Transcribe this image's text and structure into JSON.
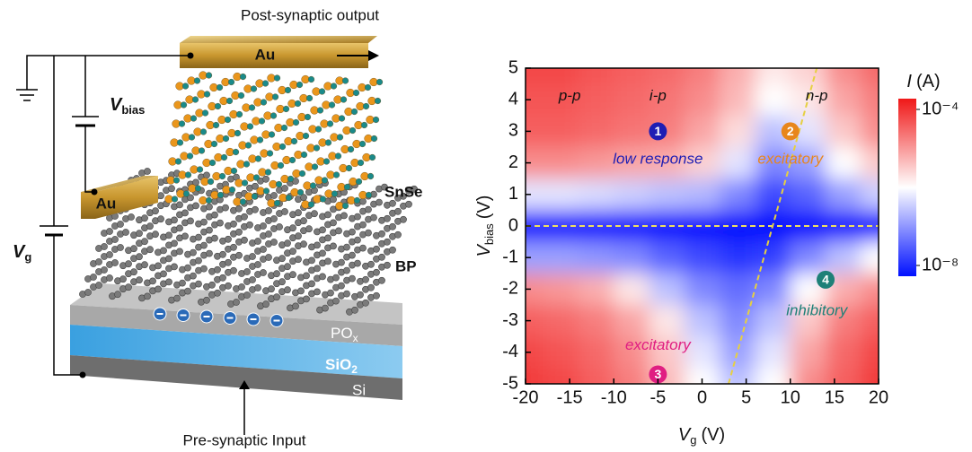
{
  "schematic": {
    "top_label": "Post-synaptic output",
    "top_electrode": "Au",
    "side_electrode": "Au",
    "vbias": {
      "symbol": "V",
      "subscript": "bias"
    },
    "vg": {
      "symbol": "V",
      "subscript": "g"
    },
    "snse": "SnSe",
    "bp": "BP",
    "pox": {
      "base": "PO",
      "subscript": "x"
    },
    "sio2": {
      "base": "SiO",
      "subscript": "2"
    },
    "si": "Si",
    "bottom_label": "Pre-synaptic Input"
  },
  "chart_data": {
    "type": "heatmap",
    "x_label": {
      "symbol": "V",
      "subscript": "g",
      "unit": "(V)"
    },
    "y_label": {
      "symbol": "V",
      "subscript": "bias",
      "unit": "(V)"
    },
    "colorbar_label": {
      "symbol": "I",
      "unit": "(A)"
    },
    "x": [
      -20,
      -16,
      -12,
      -8,
      -4,
      0,
      4,
      8,
      12,
      16,
      20
    ],
    "y": [
      5,
      4,
      3,
      2,
      1,
      0,
      -1,
      -2,
      -3,
      -4,
      -5
    ],
    "z": [
      [
        4e-05,
        4e-05,
        3e-05,
        2.5e-05,
        2e-05,
        1.3e-05,
        5e-06,
        1.6e-06,
        2.5e-06,
        1e-05,
        2e-05
      ],
      [
        3e-05,
        3e-05,
        2.5e-05,
        2e-05,
        1.6e-05,
        1e-05,
        4e-06,
        1e-06,
        1.6e-06,
        6e-06,
        1.3e-05
      ],
      [
        2.5e-05,
        2.5e-05,
        2e-05,
        1.6e-05,
        1.3e-05,
        6e-06,
        2e-06,
        3e-07,
        6e-07,
        3e-06,
        1e-05
      ],
      [
        1e-05,
        1e-05,
        8e-06,
        6e-06,
        5e-06,
        2.5e-06,
        6e-07,
        1e-07,
        1.6e-07,
        1e-06,
        3e-06
      ],
      [
        6e-07,
        6e-07,
        5e-07,
        4e-07,
        3e-07,
        2.5e-07,
        1e-07,
        3e-08,
        5e-08,
        1.6e-07,
        4e-07
      ],
      [
        1e-08,
        1e-08,
        1e-08,
        1e-08,
        1e-08,
        1e-08,
        1e-08,
        1e-08,
        1e-08,
        1e-08,
        1e-08
      ],
      [
        1.6e-07,
        1.6e-07,
        1.3e-07,
        1e-07,
        5e-08,
        3e-08,
        2e-08,
        2.5e-08,
        1e-07,
        3e-07,
        1e-06
      ],
      [
        1e-05,
        8e-06,
        5e-06,
        1.6e-06,
        3e-07,
        1e-07,
        6e-08,
        1e-07,
        1e-06,
        5e-06,
        1e-05
      ],
      [
        2.5e-05,
        2e-05,
        1.3e-05,
        6e-06,
        1.6e-06,
        3e-07,
        1e-07,
        3e-07,
        3e-06,
        1.3e-05,
        2.5e-05
      ],
      [
        4e-05,
        3e-05,
        2e-05,
        1e-05,
        3e-06,
        6e-07,
        1.6e-07,
        6e-07,
        6e-06,
        2e-05,
        4e-05
      ],
      [
        5e-05,
        4e-05,
        2.5e-05,
        1.3e-05,
        4e-06,
        1e-06,
        3e-07,
        1e-06,
        1e-05,
        2.5e-05,
        5e-05
      ]
    ],
    "xlim": [
      -20,
      20
    ],
    "ylim": [
      -5,
      5
    ],
    "xticks": [
      -20,
      -15,
      -10,
      -5,
      0,
      5,
      10,
      15,
      20
    ],
    "yticks": [
      -5,
      -4,
      -3,
      -2,
      -1,
      0,
      1,
      2,
      3,
      4,
      5
    ],
    "clim": [
      1e-08,
      0.0001
    ],
    "color_log": true,
    "cticks": [
      {
        "value": 0.0001,
        "label": "10⁻⁴"
      },
      {
        "value": 1e-08,
        "label": "10⁻⁸"
      }
    ],
    "colors": {
      "low": "#0010ff",
      "mid": "#ffffff",
      "high": "#f01818"
    },
    "guide_lines": [
      {
        "x": [
          -20,
          20
        ],
        "y": [
          0,
          0
        ],
        "color": "#f0e060"
      },
      {
        "x": [
          3,
          13
        ],
        "y": [
          -5,
          5
        ],
        "color": "#e6d040"
      }
    ],
    "annotations": [
      {
        "text": "p-p",
        "color": "#111111"
      },
      {
        "text": "i-p",
        "color": "#111111"
      },
      {
        "text": "n-p",
        "color": "#111111"
      },
      {
        "text": "1",
        "color": "#1e1eb4"
      },
      {
        "text": "low response",
        "color": "#1e1eb4"
      },
      {
        "text": "2",
        "color": "#e8861c"
      },
      {
        "text": "excitatory",
        "color": "#e8861c"
      },
      {
        "text": "4",
        "color": "#1e8078"
      },
      {
        "text": "inhibitory",
        "color": "#1e8078"
      },
      {
        "text": "3",
        "color": "#e01e82"
      },
      {
        "text": "excitatory",
        "color": "#e01e82"
      }
    ]
  }
}
